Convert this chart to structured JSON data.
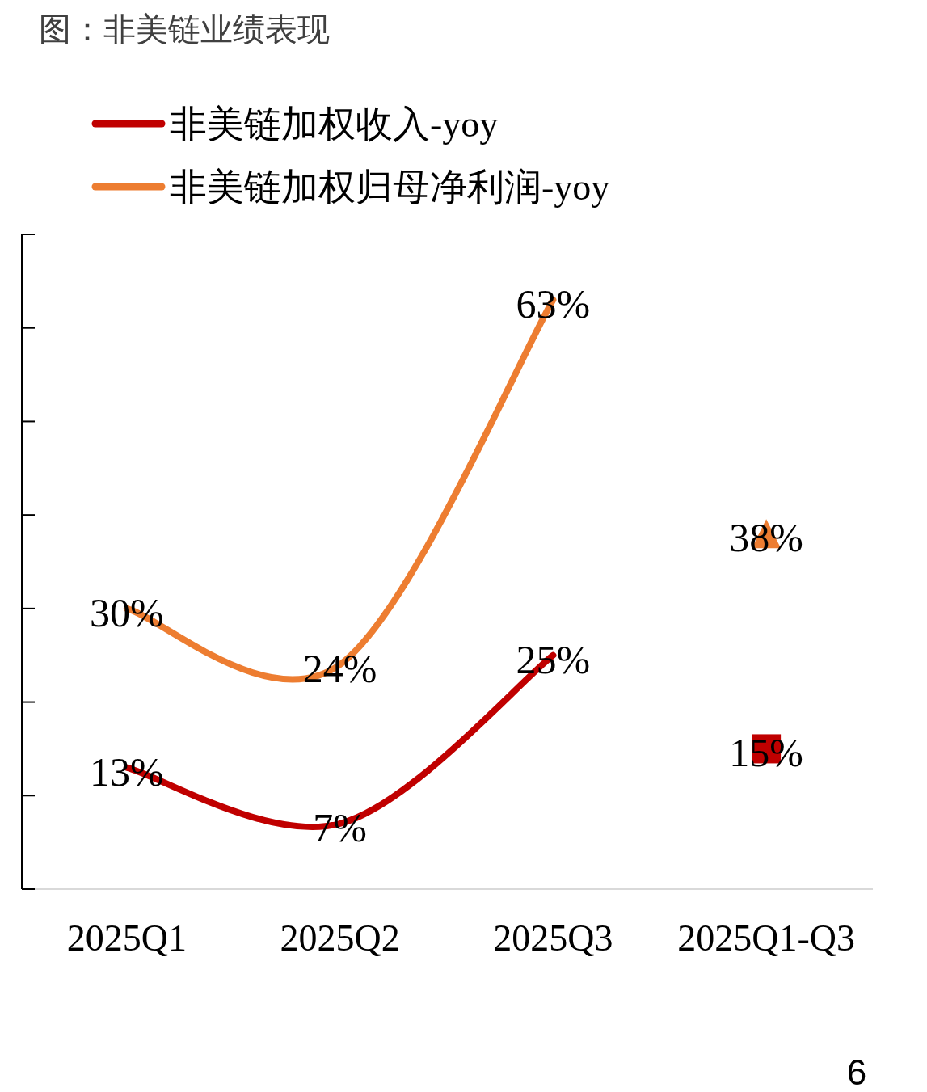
{
  "chart_data": {
    "type": "line",
    "title": "图：非美链业绩表现",
    "categories": [
      "2025Q1",
      "2025Q2",
      "2025Q3",
      "2025Q1-Q3"
    ],
    "series": [
      {
        "name": "非美链加权收入-yoy",
        "color": "#c00000",
        "values": [
          13,
          7,
          25,
          null
        ],
        "value_labels": [
          "13%",
          "7%",
          "25%",
          null
        ]
      },
      {
        "name": "非美链加权归母净利润-yoy",
        "color": "#ed7d31",
        "values": [
          30,
          24,
          63,
          null
        ],
        "value_labels": [
          "30%",
          "24%",
          "63%",
          null
        ]
      },
      {
        "type": "scatter",
        "color": "#c00000",
        "marker": "square",
        "values": [
          null,
          null,
          null,
          15
        ],
        "value_labels": [
          null,
          null,
          null,
          "15%"
        ]
      },
      {
        "type": "scatter",
        "color": "#ed7d31",
        "marker": "triangle",
        "values": [
          null,
          null,
          null,
          38
        ],
        "value_labels": [
          null,
          null,
          null,
          "38%"
        ]
      }
    ],
    "ylim": [
      0,
      70
    ],
    "yticks": [
      {
        "value": 0,
        "label": null
      },
      {
        "value": 10,
        "label": null
      },
      {
        "value": 20,
        "label": null
      },
      {
        "value": 30,
        "label": null
      },
      {
        "value": 40,
        "label": null
      },
      {
        "value": 50,
        "label": null
      },
      {
        "value": 60,
        "label": null
      },
      {
        "value": 70,
        "label": null
      }
    ],
    "tick_labels": "x",
    "legend": "top left",
    "annotations": [
      "6"
    ]
  }
}
